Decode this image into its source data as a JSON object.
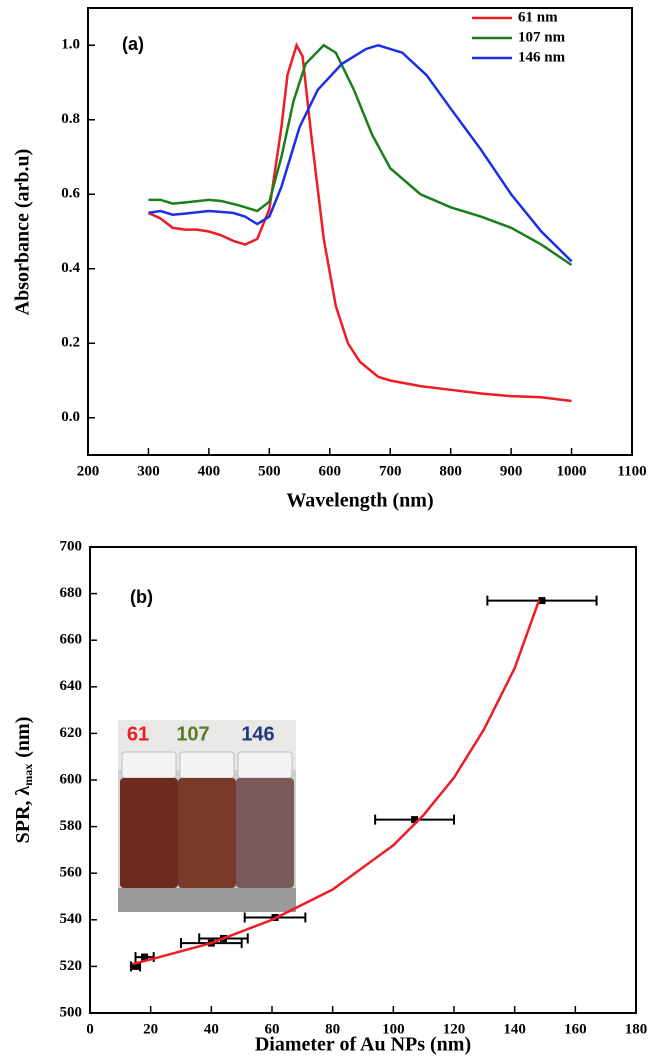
{
  "chart_data": [
    {
      "type": "line",
      "annotation": "(a)",
      "x_label": "Wavelength (nm)",
      "y_label": "Absorbance (arb.u)",
      "xlim": [
        200,
        1100
      ],
      "xticks": [
        200,
        300,
        400,
        500,
        600,
        700,
        800,
        900,
        1000,
        1100
      ],
      "ylim": [
        -0.1,
        1.1
      ],
      "yticks": [
        {
          "value": 0,
          "label": "0.0"
        },
        0.2,
        0.4,
        0.6,
        0.8,
        {
          "value": 1,
          "label": "1.0"
        }
      ],
      "legend": "top-right",
      "series": [
        {
          "name": "61 nm",
          "color": "#ee1c24",
          "x": [
            300,
            320,
            340,
            360,
            380,
            400,
            420,
            440,
            460,
            480,
            500,
            520,
            530,
            545,
            555,
            570,
            590,
            610,
            630,
            650,
            680,
            700,
            750,
            800,
            850,
            900,
            950,
            1000
          ],
          "values": [
            0.55,
            0.535,
            0.51,
            0.505,
            0.505,
            0.5,
            0.49,
            0.475,
            0.465,
            0.48,
            0.56,
            0.78,
            0.92,
            1.0,
            0.97,
            0.75,
            0.48,
            0.3,
            0.2,
            0.15,
            0.11,
            0.1,
            0.085,
            0.075,
            0.065,
            0.058,
            0.055,
            0.045
          ]
        },
        {
          "name": "107 nm",
          "color": "#1a7f1a",
          "x": [
            300,
            320,
            340,
            360,
            400,
            420,
            450,
            480,
            500,
            520,
            540,
            560,
            590,
            610,
            640,
            670,
            700,
            750,
            800,
            850,
            900,
            950,
            1000
          ],
          "values": [
            0.585,
            0.585,
            0.575,
            0.578,
            0.585,
            0.582,
            0.57,
            0.555,
            0.58,
            0.7,
            0.85,
            0.95,
            1.0,
            0.98,
            0.88,
            0.76,
            0.67,
            0.6,
            0.565,
            0.54,
            0.51,
            0.465,
            0.41
          ]
        },
        {
          "name": "146 nm",
          "color": "#1b2ee8",
          "x": [
            300,
            320,
            340,
            360,
            400,
            440,
            460,
            480,
            500,
            520,
            550,
            580,
            620,
            660,
            680,
            720,
            760,
            800,
            850,
            900,
            950,
            1000
          ],
          "values": [
            0.55,
            0.555,
            0.545,
            0.548,
            0.555,
            0.55,
            0.54,
            0.52,
            0.54,
            0.62,
            0.78,
            0.88,
            0.95,
            0.99,
            1.0,
            0.98,
            0.92,
            0.83,
            0.72,
            0.6,
            0.5,
            0.42
          ]
        }
      ]
    },
    {
      "type": "scatter",
      "annotation": "(b)",
      "x_label": "Diameter of Au NPs (nm)",
      "y_label": "SPR, λ",
      "y_label_sub": "max",
      "y_label_unit": "(nm)",
      "xlim": [
        0,
        180
      ],
      "xticks": [
        0,
        20,
        40,
        60,
        80,
        100,
        120,
        140,
        160,
        180
      ],
      "ylim": [
        500,
        700
      ],
      "yticks": [
        500,
        520,
        540,
        560,
        580,
        600,
        620,
        640,
        660,
        680,
        700
      ],
      "inset_labels": [
        {
          "text": "61",
          "color": "#ee1c24"
        },
        {
          "text": "107",
          "color": "#5a7a2a"
        },
        {
          "text": "146",
          "color": "#1f3a7a"
        }
      ],
      "series": [
        {
          "color": "#000000",
          "style": "markers",
          "x": [
            15,
            18,
            40,
            44,
            61,
            107,
            149
          ],
          "values": [
            520,
            524,
            530,
            532,
            541,
            583,
            677
          ],
          "xerr": [
            1.5,
            3,
            10,
            8,
            10,
            13,
            18
          ]
        },
        {
          "color": "#ee1c24",
          "style": "line",
          "x": [
            14,
            20,
            40,
            60,
            80,
            100,
            110,
            120,
            130,
            140,
            148
          ],
          "values": [
            521,
            523,
            530,
            540,
            553,
            572,
            585,
            601,
            622,
            648,
            677
          ]
        }
      ]
    }
  ]
}
